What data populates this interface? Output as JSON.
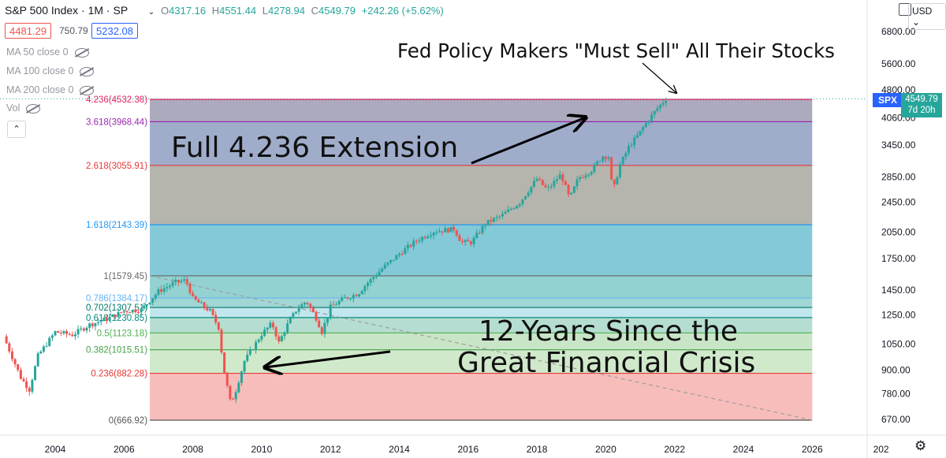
{
  "header": {
    "symbol_line": "S&P 500 Index · 1M · SP",
    "ohlc": {
      "o_label": "O",
      "o": "4317.16",
      "h_label": "H",
      "h": "4551.44",
      "l_label": "L",
      "l": "4278.94",
      "c_label": "C",
      "c": "4549.79",
      "chg": "+242.26 (+5.62%)"
    },
    "box1": "4481.29",
    "mid_value": "750.79",
    "box2": "5232.08",
    "ma": [
      "MA 50 close 0",
      "MA 100 close 0",
      "MA 200 close 0"
    ],
    "vol": "Vol",
    "currency": "USD",
    "collapse_icon": "chevron-up-icon",
    "settings_icon": "gear-icon"
  },
  "price_label": {
    "symbol": "SPX",
    "value": "4549.79",
    "countdown": "7d 20h"
  },
  "chart_data": {
    "type": "candlestick",
    "scale": "log",
    "ylim": [
      600,
      7000
    ],
    "x_ticks": [
      "2004",
      "2006",
      "2008",
      "2010",
      "2012",
      "2014",
      "2016",
      "2018",
      "2020",
      "2022",
      "2024",
      "2026",
      "202"
    ],
    "y_ticks": [
      "6800.00",
      "5600.00",
      "4800.00",
      "4060.00",
      "3450.00",
      "2850.00",
      "2450.00",
      "2050.00",
      "1750.00",
      "1450.00",
      "1250.00",
      "1050.00",
      "900.00",
      "780.00",
      "670.00"
    ],
    "fib_levels": [
      {
        "ratio": "0",
        "value": 666.92,
        "label": "0(666.92)",
        "color": "#555555",
        "fill": "#f7b9b7"
      },
      {
        "ratio": "0.236",
        "value": 882.28,
        "label": "0.236(882.28)",
        "color": "#e53935",
        "fill": "#cde8c8"
      },
      {
        "ratio": "0.382",
        "value": 1015.51,
        "label": "0.382(1015.51)",
        "color": "#43a047",
        "fill": "#c6e4c4"
      },
      {
        "ratio": "0.5",
        "value": 1123.18,
        "label": "0.5(1123.18)",
        "color": "#4caf50",
        "fill": "#b2dbcf"
      },
      {
        "ratio": "0.618",
        "value": 1230.85,
        "label": "0.618(1230.85)",
        "color": "#00897b",
        "fill": "#bfe5ec"
      },
      {
        "ratio": "0.702",
        "value": 1307.51,
        "label": "0.702(1307.51)",
        "color": "#00796b",
        "fill": "#9bd4d2"
      },
      {
        "ratio": "0.786",
        "value": 1384.17,
        "label": "0.786(1384.17)",
        "color": "#64b5f6",
        "fill": "#8ecfcf"
      },
      {
        "ratio": "1",
        "value": 1579.45,
        "label": "1(1579.45)",
        "color": "#666666",
        "fill": "#7cc6d6"
      },
      {
        "ratio": "1.618",
        "value": 2143.39,
        "label": "1.618(2143.39)",
        "color": "#2196f3",
        "fill": "#b1b1aa"
      },
      {
        "ratio": "2.618",
        "value": 3055.91,
        "label": "2.618(3055.91)",
        "color": "#e53935",
        "fill": "#9aa9c8"
      },
      {
        "ratio": "3.618",
        "value": 3968.44,
        "label": "3.618(3968.44)",
        "color": "#9c27b0",
        "fill": "#a8a6bb"
      },
      {
        "ratio": "4.236",
        "value": 4532.38,
        "label": "4.236(4532.38)",
        "color": "#e91e63",
        "fill": ""
      }
    ],
    "fib_x_range": [
      2006.75,
      2026.0
    ],
    "trend_line": {
      "from": [
        2006.75,
        1579.45
      ],
      "to": [
        2026.0,
        666.92
      ]
    },
    "price_points": [
      [
        2002.5,
        1100
      ],
      [
        2003.0,
        860
      ],
      [
        2003.25,
        800
      ],
      [
        2003.5,
        980
      ],
      [
        2004.0,
        1130
      ],
      [
        2004.5,
        1110
      ],
      [
        2005.0,
        1180
      ],
      [
        2005.5,
        1220
      ],
      [
        2006.0,
        1280
      ],
      [
        2006.5,
        1290
      ],
      [
        2007.0,
        1440
      ],
      [
        2007.5,
        1520
      ],
      [
        2007.8,
        1540
      ],
      [
        2008.0,
        1380
      ],
      [
        2008.5,
        1280
      ],
      [
        2008.75,
        1160
      ],
      [
        2008.9,
        900
      ],
      [
        2009.1,
        735
      ],
      [
        2009.25,
        797
      ],
      [
        2009.5,
        950
      ],
      [
        2010.0,
        1115
      ],
      [
        2010.3,
        1190
      ],
      [
        2010.5,
        1060
      ],
      [
        2010.75,
        1180
      ],
      [
        2011.0,
        1285
      ],
      [
        2011.3,
        1360
      ],
      [
        2011.6,
        1220
      ],
      [
        2011.75,
        1130
      ],
      [
        2012.0,
        1310
      ],
      [
        2012.4,
        1380
      ],
      [
        2012.8,
        1420
      ],
      [
        2013.0,
        1490
      ],
      [
        2013.5,
        1650
      ],
      [
        2014.0,
        1800
      ],
      [
        2014.5,
        1950
      ],
      [
        2015.0,
        2060
      ],
      [
        2015.6,
        2090
      ],
      [
        2015.8,
        1930
      ],
      [
        2016.1,
        1930
      ],
      [
        2016.5,
        2160
      ],
      [
        2017.0,
        2270
      ],
      [
        2017.5,
        2450
      ],
      [
        2018.0,
        2820
      ],
      [
        2018.3,
        2640
      ],
      [
        2018.7,
        2900
      ],
      [
        2018.95,
        2500
      ],
      [
        2019.2,
        2830
      ],
      [
        2019.6,
        2980
      ],
      [
        2019.9,
        3230
      ],
      [
        2020.1,
        3220
      ],
      [
        2020.2,
        2580
      ],
      [
        2020.4,
        3050
      ],
      [
        2020.7,
        3450
      ],
      [
        2020.9,
        3620
      ],
      [
        2021.2,
        3970
      ],
      [
        2021.5,
        4300
      ],
      [
        2021.75,
        4550
      ]
    ],
    "annotations": [
      {
        "text": "Fed Policy Makers \"Must Sell\" All Their Stocks"
      },
      {
        "text": "Full 4.236 Extension"
      },
      {
        "text": "12-Years Since the"
      },
      {
        "text": "Great Financial Crisis"
      }
    ]
  }
}
